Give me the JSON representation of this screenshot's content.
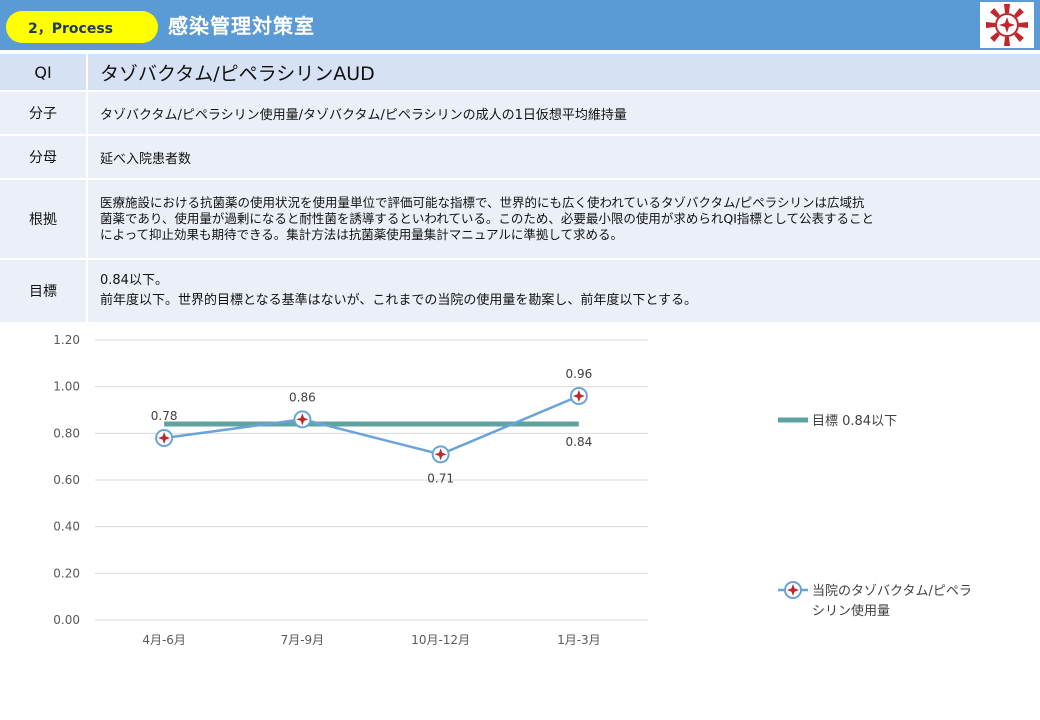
{
  "header": {
    "badge_label": "2，Process",
    "department": "感染管理対策室",
    "logo_icon": "hospital-emblem-icon"
  },
  "table": {
    "qi": {
      "label": "QI",
      "value": "タゾバクタム/ピペラシリンAUD"
    },
    "numerator": {
      "label": "分子",
      "value": "タゾバクタム/ピペラシリン使用量/タゾバクタム/ピペラシリンの成人の1日仮想平均維持量"
    },
    "denominator": {
      "label": "分母",
      "value": "延べ入院患者数"
    },
    "basis": {
      "label": "根拠",
      "lines": [
        "医療施設における抗菌薬の使用状況を使用量単位で評価可能な指標で、世界的にも広く使われているタゾバクタム/ピペラシリンは広域抗",
        "菌薬であり、使用量が過剰になると耐性菌を誘導するといわれている。このため、必要最小限の使用が求められQI指標として公表すること",
        "によって抑止効果も期待できる。集計方法は抗菌薬使用量集計マニュアルに準拠して求める。"
      ]
    },
    "goal": {
      "label": "目標",
      "line1": "0.84以下。",
      "line2": "前年度以下。世界的目標となる基準はないが、これまでの当院の使用量を勘案し、前年度以下とする。"
    }
  },
  "colors": {
    "header_bg": "#5b9bd5",
    "badge_bg": "#ffff00",
    "target_line": "#5fa3a0",
    "series_line": "#6aa3d8",
    "marker_fill": "#ffffff",
    "marker_accent": "#c0262d"
  },
  "chart_data": {
    "type": "line",
    "categories": [
      "4月-6月",
      "7月-9月",
      "10月-12月",
      "1月-3月"
    ],
    "series": [
      {
        "name": "目標  0.84以下",
        "values": [
          0.84,
          0.84,
          0.84,
          0.84
        ],
        "labels": [
          "",
          "",
          "",
          "0.84"
        ]
      },
      {
        "name": "当院のタゾバクタム/ピペラシリン使用量",
        "values": [
          0.78,
          0.86,
          0.71,
          0.96
        ],
        "labels": [
          "0.78",
          "0.86",
          "0.71",
          "0.96"
        ]
      }
    ],
    "yticks": [
      "0.00",
      "0.20",
      "0.40",
      "0.60",
      "0.80",
      "1.00",
      "1.20"
    ],
    "ylim": [
      0,
      1.2
    ],
    "grid": true,
    "legend_position": "right"
  }
}
